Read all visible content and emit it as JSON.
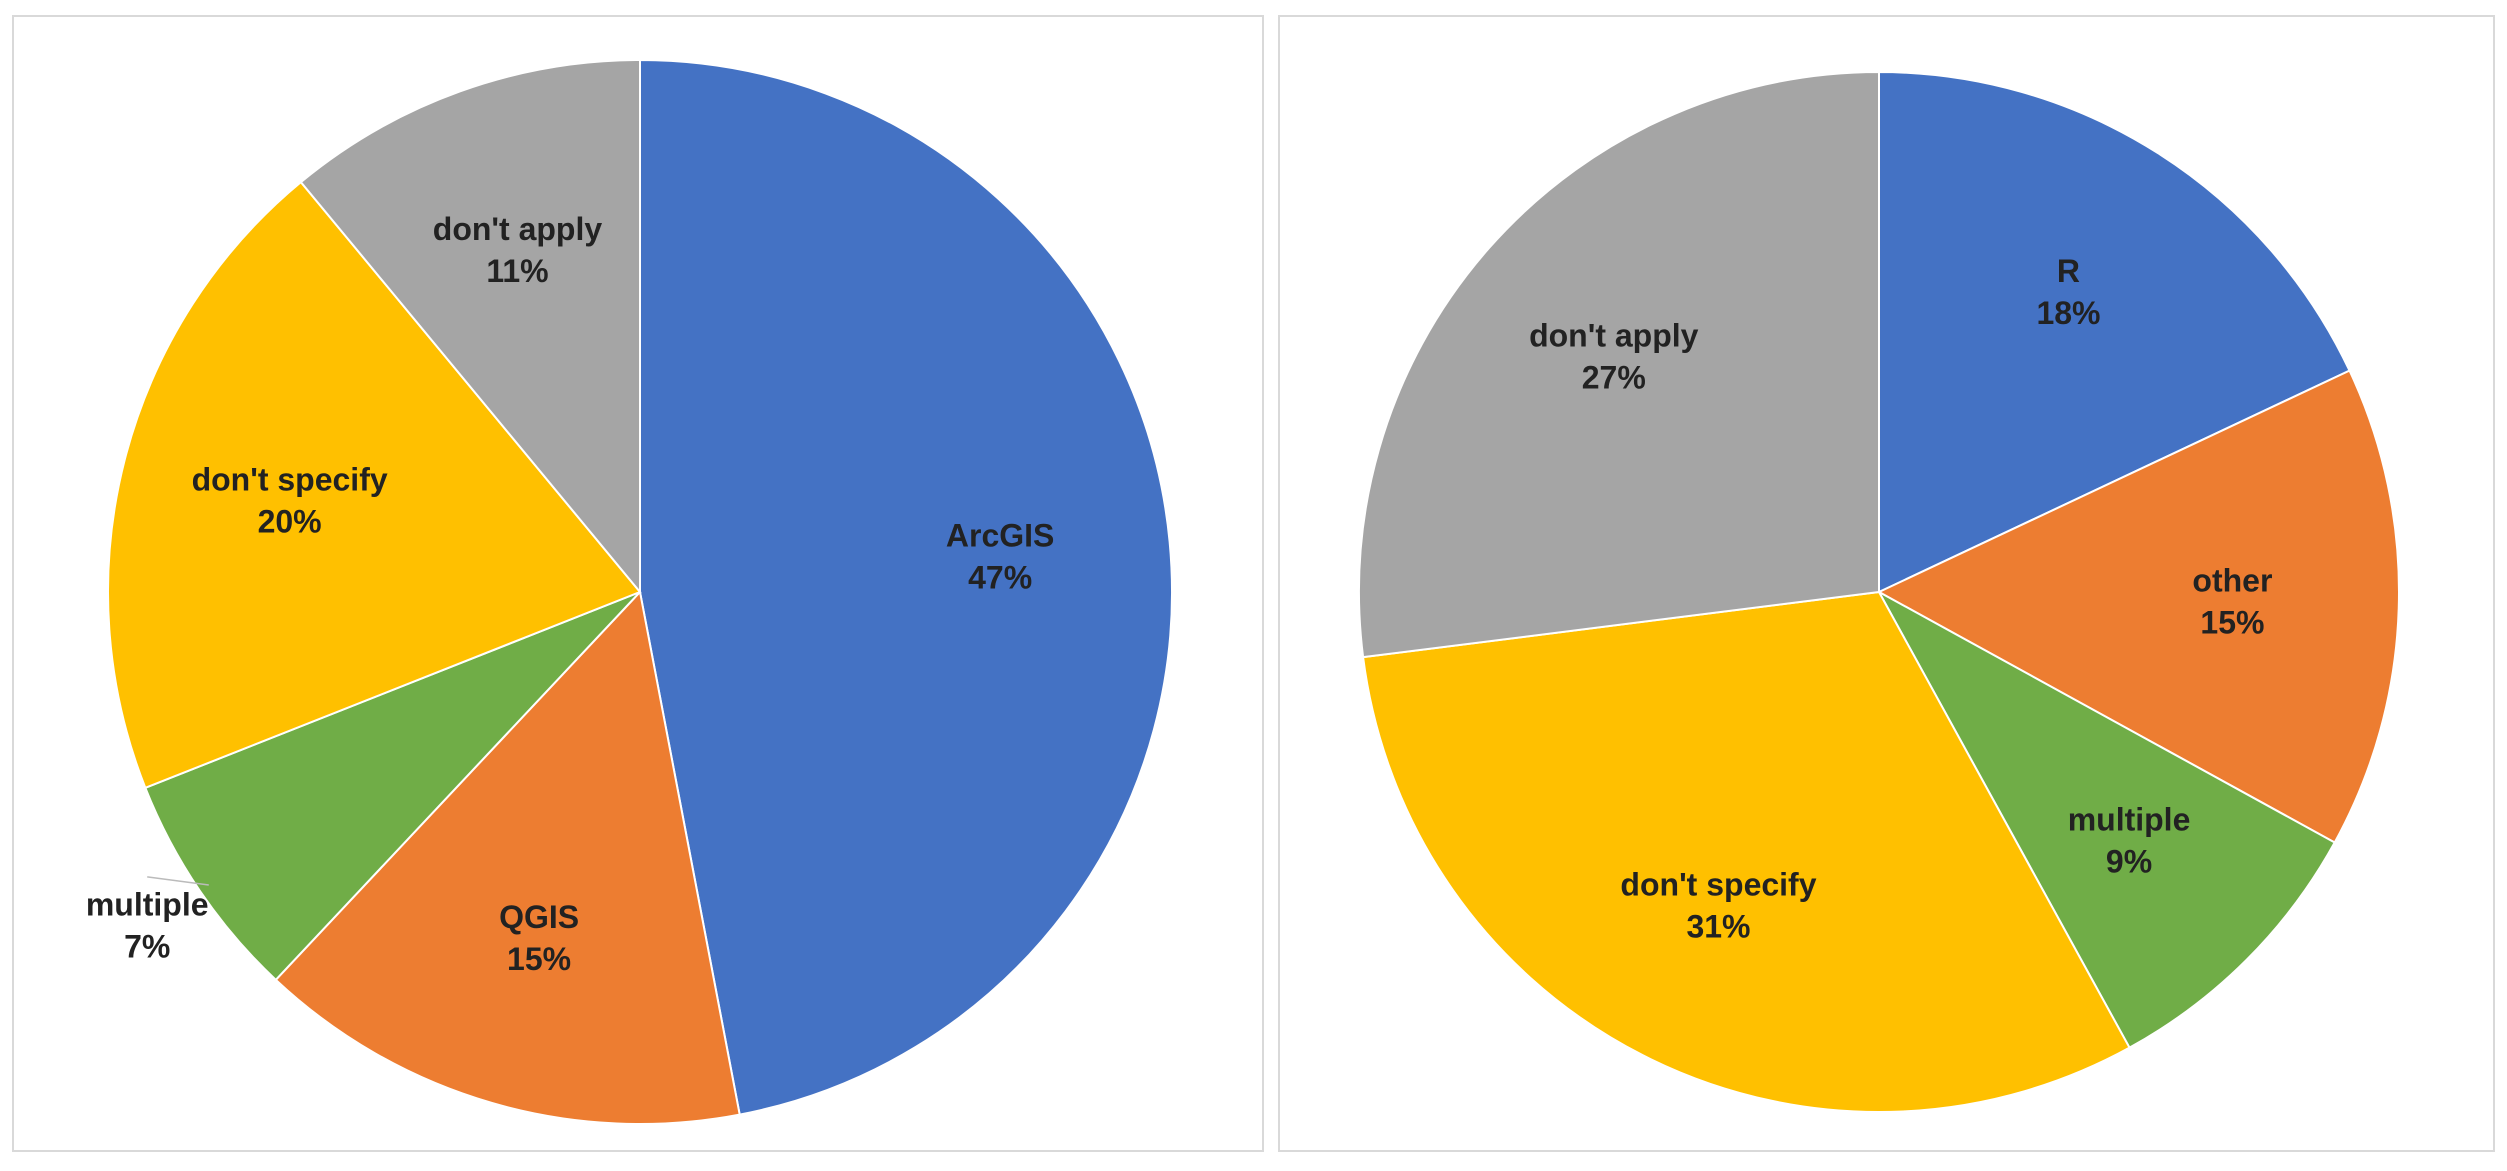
{
  "chart_data": [
    {
      "type": "pie",
      "categories": [
        "ArcGIS",
        "QGIS",
        "multiple",
        "don't specify",
        "don't apply"
      ],
      "values": [
        47,
        15,
        7,
        20,
        11
      ],
      "value_labels": [
        "47%",
        "15%",
        "7%",
        "20%",
        "11%"
      ],
      "colors": [
        "#4472c4",
        "#ed7d31",
        "#70ad47",
        "#ffc000",
        "#a5a5a5"
      ]
    },
    {
      "type": "pie",
      "categories": [
        "R",
        "other",
        "multiple",
        "don't specify",
        "don't apply"
      ],
      "values": [
        18,
        15,
        9,
        31,
        27
      ],
      "value_labels": [
        "18%",
        "15%",
        "9%",
        "31%",
        "27%"
      ],
      "colors": [
        "#4472c4",
        "#ed7d31",
        "#70ad47",
        "#ffc000",
        "#a5a5a5"
      ]
    }
  ]
}
